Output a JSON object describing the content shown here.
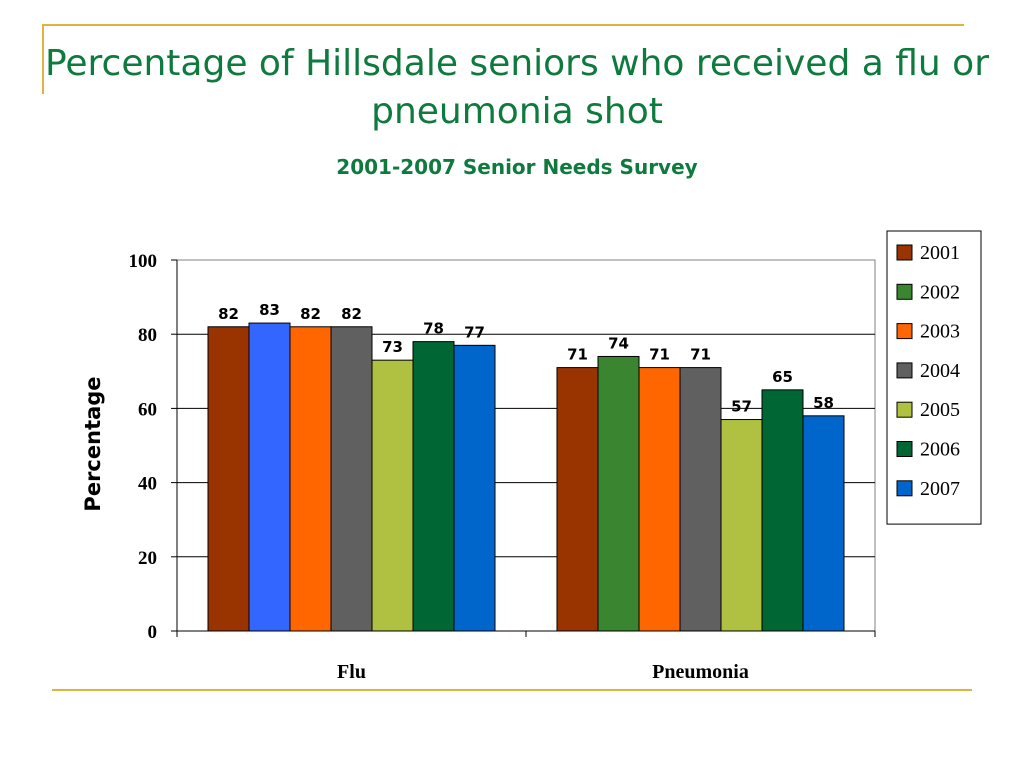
{
  "slide": {
    "title": "Percentage of Hillsdale seniors who received a flu or pneumonia shot",
    "subtitle": "2001-2007 Senior Needs Survey",
    "frame_color": "#E2B33C",
    "title_color": "#0E7A3E"
  },
  "chart_data": {
    "type": "bar",
    "categories": [
      "Flu",
      "Pneumonia"
    ],
    "series": [
      {
        "name": "2001",
        "color": "#993300",
        "values": [
          82,
          71
        ]
      },
      {
        "name": "2002",
        "color": "#3366FF",
        "values": [
          83,
          74
        ],
        "colors": [
          "#3366FF",
          "#3A8530"
        ]
      },
      {
        "name": "2003",
        "color": "#FF6600",
        "values": [
          82,
          71
        ]
      },
      {
        "name": "2004",
        "color": "#606060",
        "values": [
          82,
          71
        ]
      },
      {
        "name": "2005",
        "color": "#B0C040",
        "values": [
          73,
          57
        ]
      },
      {
        "name": "2006",
        "color": "#006633",
        "values": [
          78,
          65
        ]
      },
      {
        "name": "2007",
        "color": "#0066CC",
        "values": [
          77,
          58
        ]
      }
    ],
    "legend_swatch_colors": [
      "#993300",
      "#3A8530",
      "#FF6600",
      "#606060",
      "#B0C040",
      "#006633",
      "#0066CC"
    ],
    "xlabel": "",
    "ylabel": "Percentage",
    "ylim": [
      0,
      100
    ],
    "yticks": [
      0,
      20,
      40,
      60,
      80,
      100
    ],
    "grid": true,
    "legend": "right",
    "data_labels": true
  }
}
